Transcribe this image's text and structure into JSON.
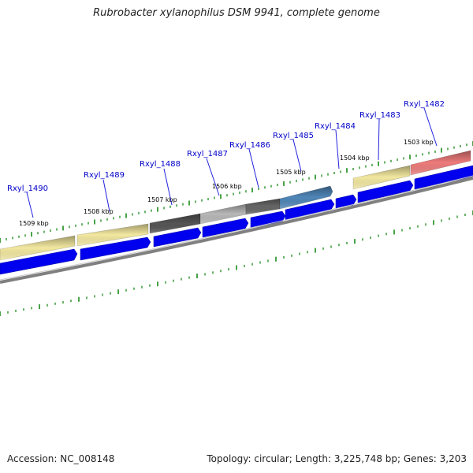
{
  "header": {
    "title": "Rubrobacter xylanophilus DSM 9941, complete genome"
  },
  "footer": {
    "accession": "Accession: NC_008148",
    "summary": "Topology: circular; Length: 3,225,748 bp; Genes: 3,203"
  },
  "genes": [
    {
      "id": "Rxyl_1482",
      "color": "#ee7b7b"
    },
    {
      "id": "Rxyl_1483",
      "color": "#f3e8a0"
    },
    {
      "id": "Rxyl_1484",
      "color": "#ffffff"
    },
    {
      "id": "Rxyl_1485",
      "color": "#4f86b8"
    },
    {
      "id": "Rxyl_1486",
      "color": "#666666"
    },
    {
      "id": "Rxyl_1487",
      "color": "#b8b8b8"
    },
    {
      "id": "Rxyl_1488",
      "color": "#555555"
    },
    {
      "id": "Rxyl_1489",
      "color": "#f3e8a0"
    },
    {
      "id": "Rxyl_1490",
      "color": "#f3e8a0"
    }
  ],
  "kbp_ticks": [
    "1503 kbp",
    "1504 kbp",
    "1505 kbp",
    "1506 kbp",
    "1507 kbp",
    "1508 kbp",
    "1509 kbp"
  ],
  "colors": {
    "label": "#0000c8",
    "orf_arrow": "#0000ee",
    "backbone": "#888888",
    "tick": "#1a8a1a"
  }
}
